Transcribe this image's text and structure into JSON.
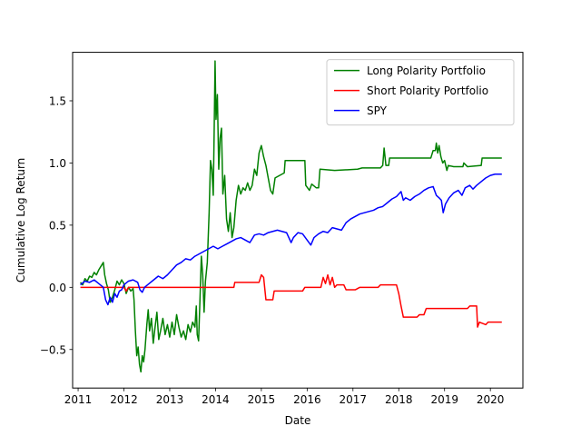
{
  "chart_data": {
    "type": "line",
    "xlabel": "Date",
    "ylabel": "Cumulative Log Return",
    "xlim": [
      2010.88,
      2020.71
    ],
    "ylim": [
      -0.81,
      1.89
    ],
    "xticks": [
      2011,
      2012,
      2013,
      2014,
      2015,
      2016,
      2017,
      2018,
      2019,
      2020
    ],
    "xtick_labels": [
      "2011",
      "2012",
      "2013",
      "2014",
      "2015",
      "2016",
      "2017",
      "2018",
      "2019",
      "2020"
    ],
    "yticks": [
      -0.5,
      0.0,
      0.5,
      1.0,
      1.5
    ],
    "ytick_labels": [
      "−0.5",
      "0.0",
      "0.5",
      "1.0",
      "1.5"
    ],
    "grid": false,
    "legend_position": "top-right",
    "series": [
      {
        "name": "Long Polarity Portfolio",
        "color": "#008000",
        "points": [
          [
            2011.05,
            0.04
          ],
          [
            2011.1,
            0.02
          ],
          [
            2011.15,
            0.07
          ],
          [
            2011.2,
            0.05
          ],
          [
            2011.25,
            0.09
          ],
          [
            2011.3,
            0.08
          ],
          [
            2011.35,
            0.12
          ],
          [
            2011.4,
            0.1
          ],
          [
            2011.45,
            0.14
          ],
          [
            2011.5,
            0.17
          ],
          [
            2011.55,
            0.2
          ],
          [
            2011.58,
            0.1
          ],
          [
            2011.62,
            0.03
          ],
          [
            2011.66,
            -0.02
          ],
          [
            2011.7,
            -0.12
          ],
          [
            2011.75,
            -0.08
          ],
          [
            2011.8,
            -0.02
          ],
          [
            2011.85,
            0.05
          ],
          [
            2011.9,
            0.02
          ],
          [
            2011.95,
            0.06
          ],
          [
            2012.0,
            0.03
          ],
          [
            2012.05,
            -0.05
          ],
          [
            2012.1,
            0.0
          ],
          [
            2012.15,
            -0.03
          ],
          [
            2012.2,
            -0.01
          ],
          [
            2012.22,
            -0.1
          ],
          [
            2012.25,
            -0.35
          ],
          [
            2012.28,
            -0.55
          ],
          [
            2012.31,
            -0.48
          ],
          [
            2012.34,
            -0.62
          ],
          [
            2012.37,
            -0.68
          ],
          [
            2012.4,
            -0.55
          ],
          [
            2012.43,
            -0.6
          ],
          [
            2012.46,
            -0.5
          ],
          [
            2012.5,
            -0.3
          ],
          [
            2012.53,
            -0.18
          ],
          [
            2012.56,
            -0.35
          ],
          [
            2012.6,
            -0.25
          ],
          [
            2012.64,
            -0.45
          ],
          [
            2012.68,
            -0.32
          ],
          [
            2012.72,
            -0.2
          ],
          [
            2012.76,
            -0.42
          ],
          [
            2012.8,
            -0.35
          ],
          [
            2012.85,
            -0.25
          ],
          [
            2012.9,
            -0.38
          ],
          [
            2012.95,
            -0.3
          ],
          [
            2013.0,
            -0.4
          ],
          [
            2013.05,
            -0.28
          ],
          [
            2013.1,
            -0.38
          ],
          [
            2013.15,
            -0.22
          ],
          [
            2013.2,
            -0.32
          ],
          [
            2013.25,
            -0.4
          ],
          [
            2013.3,
            -0.35
          ],
          [
            2013.35,
            -0.42
          ],
          [
            2013.4,
            -0.3
          ],
          [
            2013.45,
            -0.36
          ],
          [
            2013.5,
            -0.28
          ],
          [
            2013.55,
            -0.32
          ],
          [
            2013.58,
            -0.15
          ],
          [
            2013.6,
            -0.38
          ],
          [
            2013.63,
            -0.43
          ],
          [
            2013.66,
            -0.1
          ],
          [
            2013.69,
            0.25
          ],
          [
            2013.72,
            0.1
          ],
          [
            2013.75,
            -0.2
          ],
          [
            2013.78,
            0.05
          ],
          [
            2013.82,
            0.2
          ],
          [
            2013.86,
            0.6
          ],
          [
            2013.89,
            1.02
          ],
          [
            2013.92,
            0.95
          ],
          [
            2013.95,
            0.74
          ],
          [
            2013.97,
            1.25
          ],
          [
            2013.99,
            1.82
          ],
          [
            2014.01,
            1.35
          ],
          [
            2014.04,
            1.55
          ],
          [
            2014.07,
            0.95
          ],
          [
            2014.1,
            1.2
          ],
          [
            2014.13,
            1.28
          ],
          [
            2014.16,
            0.75
          ],
          [
            2014.2,
            0.9
          ],
          [
            2014.24,
            0.55
          ],
          [
            2014.28,
            0.45
          ],
          [
            2014.32,
            0.6
          ],
          [
            2014.36,
            0.4
          ],
          [
            2014.4,
            0.48
          ],
          [
            2014.45,
            0.7
          ],
          [
            2014.5,
            0.82
          ],
          [
            2014.55,
            0.75
          ],
          [
            2014.6,
            0.8
          ],
          [
            2014.65,
            0.78
          ],
          [
            2014.7,
            0.84
          ],
          [
            2014.75,
            0.78
          ],
          [
            2014.8,
            0.82
          ],
          [
            2014.85,
            0.95
          ],
          [
            2014.9,
            0.9
          ],
          [
            2014.95,
            1.08
          ],
          [
            2015.0,
            1.14
          ],
          [
            2015.05,
            1.05
          ],
          [
            2015.1,
            0.98
          ],
          [
            2015.15,
            0.88
          ],
          [
            2015.2,
            0.78
          ],
          [
            2015.25,
            0.75
          ],
          [
            2015.3,
            0.88
          ],
          [
            2015.4,
            0.9
          ],
          [
            2015.5,
            0.92
          ],
          [
            2015.52,
            1.02
          ],
          [
            2015.95,
            1.02
          ],
          [
            2015.97,
            0.82
          ],
          [
            2016.05,
            0.78
          ],
          [
            2016.1,
            0.83
          ],
          [
            2016.2,
            0.8
          ],
          [
            2016.25,
            0.8
          ],
          [
            2016.28,
            0.95
          ],
          [
            2016.6,
            0.94
          ],
          [
            2017.1,
            0.95
          ],
          [
            2017.2,
            0.96
          ],
          [
            2017.6,
            0.96
          ],
          [
            2017.65,
            0.98
          ],
          [
            2017.68,
            1.12
          ],
          [
            2017.72,
            0.98
          ],
          [
            2017.78,
            0.98
          ],
          [
            2017.8,
            1.04
          ],
          [
            2018.2,
            1.04
          ],
          [
            2018.6,
            1.04
          ],
          [
            2018.7,
            1.04
          ],
          [
            2018.75,
            1.1
          ],
          [
            2018.8,
            1.1
          ],
          [
            2018.82,
            1.16
          ],
          [
            2018.85,
            1.08
          ],
          [
            2018.88,
            1.14
          ],
          [
            2018.92,
            1.05
          ],
          [
            2018.96,
            1.0
          ],
          [
            2019.0,
            1.02
          ],
          [
            2019.05,
            0.94
          ],
          [
            2019.08,
            0.98
          ],
          [
            2019.2,
            0.97
          ],
          [
            2019.4,
            0.97
          ],
          [
            2019.42,
            1.0
          ],
          [
            2019.5,
            0.97
          ],
          [
            2019.8,
            0.98
          ],
          [
            2019.82,
            1.04
          ],
          [
            2020.0,
            1.04
          ],
          [
            2020.25,
            1.04
          ]
        ]
      },
      {
        "name": "Short Polarity Portfolio",
        "color": "#ff0000",
        "points": [
          [
            2011.05,
            0.0
          ],
          [
            2012.0,
            0.0
          ],
          [
            2012.05,
            -0.03
          ],
          [
            2012.1,
            0.0
          ],
          [
            2013.5,
            0.0
          ],
          [
            2014.4,
            0.0
          ],
          [
            2014.42,
            0.04
          ],
          [
            2014.95,
            0.04
          ],
          [
            2015.0,
            0.1
          ],
          [
            2015.05,
            0.08
          ],
          [
            2015.1,
            -0.1
          ],
          [
            2015.25,
            -0.1
          ],
          [
            2015.28,
            -0.03
          ],
          [
            2015.9,
            -0.03
          ],
          [
            2015.95,
            0.0
          ],
          [
            2016.3,
            0.0
          ],
          [
            2016.35,
            0.08
          ],
          [
            2016.4,
            0.03
          ],
          [
            2016.45,
            0.1
          ],
          [
            2016.5,
            0.02
          ],
          [
            2016.55,
            0.08
          ],
          [
            2016.6,
            0.0
          ],
          [
            2016.65,
            0.02
          ],
          [
            2016.8,
            0.02
          ],
          [
            2016.85,
            -0.02
          ],
          [
            2017.05,
            -0.02
          ],
          [
            2017.15,
            0.0
          ],
          [
            2017.55,
            0.0
          ],
          [
            2017.6,
            0.02
          ],
          [
            2017.95,
            0.02
          ],
          [
            2018.0,
            -0.05
          ],
          [
            2018.05,
            -0.15
          ],
          [
            2018.1,
            -0.24
          ],
          [
            2018.4,
            -0.24
          ],
          [
            2018.45,
            -0.22
          ],
          [
            2018.55,
            -0.22
          ],
          [
            2018.6,
            -0.17
          ],
          [
            2019.5,
            -0.17
          ],
          [
            2019.55,
            -0.15
          ],
          [
            2019.7,
            -0.15
          ],
          [
            2019.72,
            -0.32
          ],
          [
            2019.76,
            -0.28
          ],
          [
            2019.9,
            -0.3
          ],
          [
            2019.95,
            -0.28
          ],
          [
            2020.25,
            -0.28
          ]
        ]
      },
      {
        "name": "SPY",
        "color": "#0000ff",
        "points": [
          [
            2011.05,
            0.02
          ],
          [
            2011.15,
            0.05
          ],
          [
            2011.25,
            0.04
          ],
          [
            2011.35,
            0.06
          ],
          [
            2011.45,
            0.03
          ],
          [
            2011.55,
            0.0
          ],
          [
            2011.6,
            -0.1
          ],
          [
            2011.65,
            -0.14
          ],
          [
            2011.7,
            -0.08
          ],
          [
            2011.75,
            -0.12
          ],
          [
            2011.8,
            -0.05
          ],
          [
            2011.85,
            -0.08
          ],
          [
            2011.9,
            -0.03
          ],
          [
            2011.95,
            -0.02
          ],
          [
            2012.0,
            0.02
          ],
          [
            2012.1,
            0.05
          ],
          [
            2012.2,
            0.06
          ],
          [
            2012.3,
            0.04
          ],
          [
            2012.35,
            -0.02
          ],
          [
            2012.4,
            -0.04
          ],
          [
            2012.45,
            0.0
          ],
          [
            2012.55,
            0.03
          ],
          [
            2012.65,
            0.06
          ],
          [
            2012.75,
            0.09
          ],
          [
            2012.85,
            0.07
          ],
          [
            2012.95,
            0.1
          ],
          [
            2013.05,
            0.14
          ],
          [
            2013.15,
            0.18
          ],
          [
            2013.25,
            0.2
          ],
          [
            2013.35,
            0.23
          ],
          [
            2013.45,
            0.22
          ],
          [
            2013.55,
            0.25
          ],
          [
            2013.65,
            0.27
          ],
          [
            2013.75,
            0.29
          ],
          [
            2013.85,
            0.31
          ],
          [
            2013.95,
            0.33
          ],
          [
            2014.05,
            0.31
          ],
          [
            2014.15,
            0.33
          ],
          [
            2014.25,
            0.35
          ],
          [
            2014.35,
            0.37
          ],
          [
            2014.45,
            0.39
          ],
          [
            2014.55,
            0.4
          ],
          [
            2014.65,
            0.38
          ],
          [
            2014.75,
            0.36
          ],
          [
            2014.85,
            0.42
          ],
          [
            2014.95,
            0.43
          ],
          [
            2015.05,
            0.42
          ],
          [
            2015.15,
            0.44
          ],
          [
            2015.25,
            0.45
          ],
          [
            2015.35,
            0.46
          ],
          [
            2015.45,
            0.45
          ],
          [
            2015.55,
            0.44
          ],
          [
            2015.6,
            0.4
          ],
          [
            2015.65,
            0.36
          ],
          [
            2015.7,
            0.4
          ],
          [
            2015.8,
            0.44
          ],
          [
            2015.9,
            0.43
          ],
          [
            2016.0,
            0.38
          ],
          [
            2016.08,
            0.34
          ],
          [
            2016.15,
            0.4
          ],
          [
            2016.25,
            0.43
          ],
          [
            2016.35,
            0.45
          ],
          [
            2016.45,
            0.44
          ],
          [
            2016.55,
            0.48
          ],
          [
            2016.65,
            0.47
          ],
          [
            2016.75,
            0.46
          ],
          [
            2016.85,
            0.52
          ],
          [
            2016.95,
            0.55
          ],
          [
            2017.05,
            0.57
          ],
          [
            2017.15,
            0.59
          ],
          [
            2017.25,
            0.6
          ],
          [
            2017.35,
            0.61
          ],
          [
            2017.45,
            0.62
          ],
          [
            2017.55,
            0.64
          ],
          [
            2017.65,
            0.65
          ],
          [
            2017.75,
            0.68
          ],
          [
            2017.85,
            0.71
          ],
          [
            2017.95,
            0.73
          ],
          [
            2018.05,
            0.77
          ],
          [
            2018.1,
            0.7
          ],
          [
            2018.15,
            0.72
          ],
          [
            2018.25,
            0.7
          ],
          [
            2018.35,
            0.73
          ],
          [
            2018.45,
            0.75
          ],
          [
            2018.55,
            0.78
          ],
          [
            2018.65,
            0.8
          ],
          [
            2018.75,
            0.81
          ],
          [
            2018.82,
            0.74
          ],
          [
            2018.88,
            0.72
          ],
          [
            2018.93,
            0.7
          ],
          [
            2018.97,
            0.6
          ],
          [
            2019.02,
            0.67
          ],
          [
            2019.1,
            0.72
          ],
          [
            2019.2,
            0.76
          ],
          [
            2019.3,
            0.78
          ],
          [
            2019.38,
            0.74
          ],
          [
            2019.45,
            0.8
          ],
          [
            2019.55,
            0.82
          ],
          [
            2019.62,
            0.79
          ],
          [
            2019.7,
            0.82
          ],
          [
            2019.8,
            0.85
          ],
          [
            2019.9,
            0.88
          ],
          [
            2020.0,
            0.9
          ],
          [
            2020.1,
            0.91
          ],
          [
            2020.25,
            0.91
          ]
        ]
      }
    ]
  }
}
